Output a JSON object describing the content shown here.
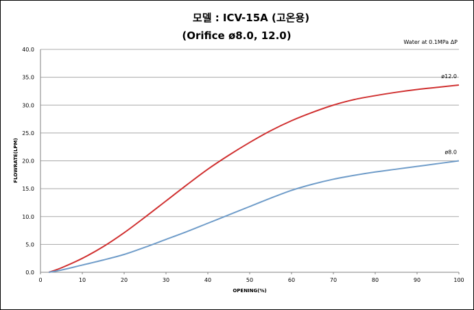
{
  "chart_data": {
    "type": "line",
    "title": "모델 : ICV-15A (고온용)",
    "subtitle": "(Orifice ø8.0,  12.0)",
    "note": "Water at 0.1MPa ΔP",
    "xlabel": "OPENING(%)",
    "ylabel": "FLOWRATE(LPM)",
    "xlim": [
      0,
      100
    ],
    "ylim": [
      0,
      40
    ],
    "x_ticks": [
      "0",
      "10",
      "20",
      "30",
      "40",
      "50",
      "60",
      "70",
      "80",
      "90",
      "100"
    ],
    "y_ticks": [
      "0.0",
      "5.0",
      "10.0",
      "15.0",
      "20.0",
      "25.0",
      "30.0",
      "35.0",
      "40.0"
    ],
    "grid": "horizontal",
    "series": [
      {
        "name": "ø12.0",
        "color": "#d03030",
        "x": [
          2,
          5,
          10,
          15,
          20,
          25,
          30,
          35,
          40,
          45,
          50,
          55,
          60,
          65,
          70,
          75,
          80,
          85,
          90,
          95,
          100
        ],
        "y": [
          0.0,
          0.8,
          2.5,
          4.6,
          7.1,
          9.9,
          12.8,
          15.7,
          18.5,
          21.0,
          23.3,
          25.4,
          27.2,
          28.7,
          30.0,
          31.0,
          31.7,
          32.3,
          32.8,
          33.2,
          33.6
        ]
      },
      {
        "name": "ø8.0",
        "color": "#6f9cc9",
        "x": [
          2,
          5,
          10,
          15,
          20,
          25,
          30,
          35,
          40,
          45,
          50,
          55,
          60,
          65,
          70,
          75,
          80,
          85,
          90,
          95,
          100
        ],
        "y": [
          0.0,
          0.4,
          1.3,
          2.2,
          3.2,
          4.5,
          5.9,
          7.3,
          8.8,
          10.3,
          11.8,
          13.3,
          14.7,
          15.8,
          16.7,
          17.4,
          18.0,
          18.5,
          19.0,
          19.5,
          20.0
        ]
      }
    ]
  }
}
